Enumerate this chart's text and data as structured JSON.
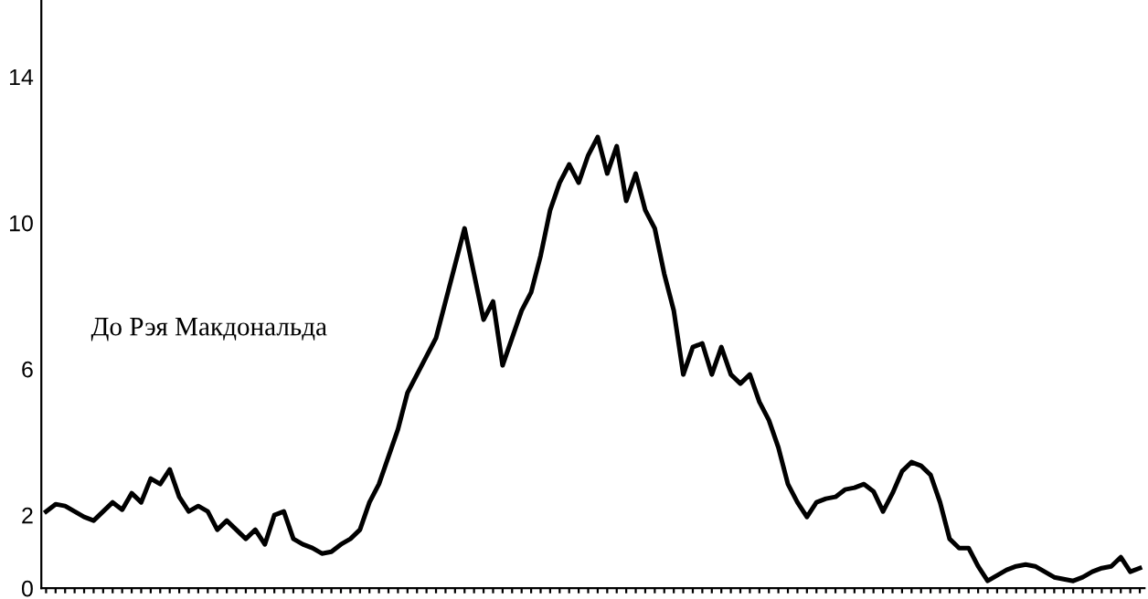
{
  "chart_data": {
    "type": "line",
    "color": "#000000",
    "categories": [
      null,
      null,
      null,
      null,
      null,
      null,
      null,
      null,
      null,
      null,
      null,
      null,
      null,
      null,
      null,
      null,
      null,
      null,
      null,
      null,
      null,
      null,
      null,
      null,
      null,
      null,
      null,
      null,
      null,
      null,
      null,
      null,
      null,
      null,
      null,
      null,
      null,
      null,
      null,
      null,
      null,
      null,
      null,
      null,
      null,
      null,
      null,
      null,
      null,
      null,
      null,
      null,
      null,
      null,
      null,
      null,
      null,
      null,
      null,
      null,
      null,
      null,
      null,
      null,
      null,
      null,
      null,
      null,
      null,
      null,
      null,
      null,
      null,
      null,
      null,
      null,
      null,
      null,
      null,
      null,
      null,
      null,
      null,
      null,
      null,
      null,
      null,
      null,
      null,
      null,
      null,
      null,
      null,
      null,
      null,
      null,
      null,
      null,
      null,
      null,
      null,
      null,
      null,
      null,
      null,
      null,
      null,
      null,
      null,
      null,
      null,
      null,
      null,
      null,
      null,
      null
    ],
    "values": [
      2.1,
      2.3,
      2.25,
      2.1,
      1.95,
      1.85,
      2.1,
      2.35,
      2.15,
      2.6,
      2.35,
      3.0,
      2.85,
      3.25,
      2.5,
      2.1,
      2.25,
      2.1,
      1.6,
      1.85,
      1.6,
      1.35,
      1.6,
      1.2,
      2.0,
      2.1,
      1.35,
      1.2,
      1.1,
      0.95,
      1.0,
      1.2,
      1.35,
      1.6,
      2.35,
      2.85,
      3.6,
      4.35,
      5.35,
      5.85,
      6.35,
      6.85,
      7.85,
      8.85,
      9.85,
      8.6,
      7.35,
      7.85,
      6.1,
      6.85,
      7.6,
      8.1,
      9.1,
      10.35,
      11.1,
      11.6,
      11.1,
      11.85,
      12.35,
      11.35,
      12.1,
      10.6,
      11.35,
      10.35,
      9.85,
      8.6,
      7.6,
      5.85,
      6.6,
      6.7,
      5.85,
      6.6,
      5.85,
      5.6,
      5.85,
      5.1,
      4.6,
      3.85,
      2.85,
      2.35,
      1.95,
      2.35,
      2.45,
      2.5,
      2.7,
      2.75,
      2.85,
      2.65,
      2.1,
      2.6,
      3.2,
      3.45,
      3.35,
      3.1,
      2.35,
      1.35,
      1.1,
      1.1,
      0.6,
      0.2,
      0.35,
      0.5,
      0.6,
      0.65,
      0.6,
      0.45,
      0.3,
      0.25,
      0.2,
      0.3,
      0.45,
      0.55,
      0.6,
      0.85,
      0.45,
      0.55
    ],
    "ylim": [
      0,
      16.1
    ],
    "yticks": [
      0,
      2,
      6,
      10,
      14
    ],
    "grid": false,
    "marker": "none",
    "line_style": "solid",
    "annotations": [
      "До Рэя Макдональда"
    ]
  }
}
